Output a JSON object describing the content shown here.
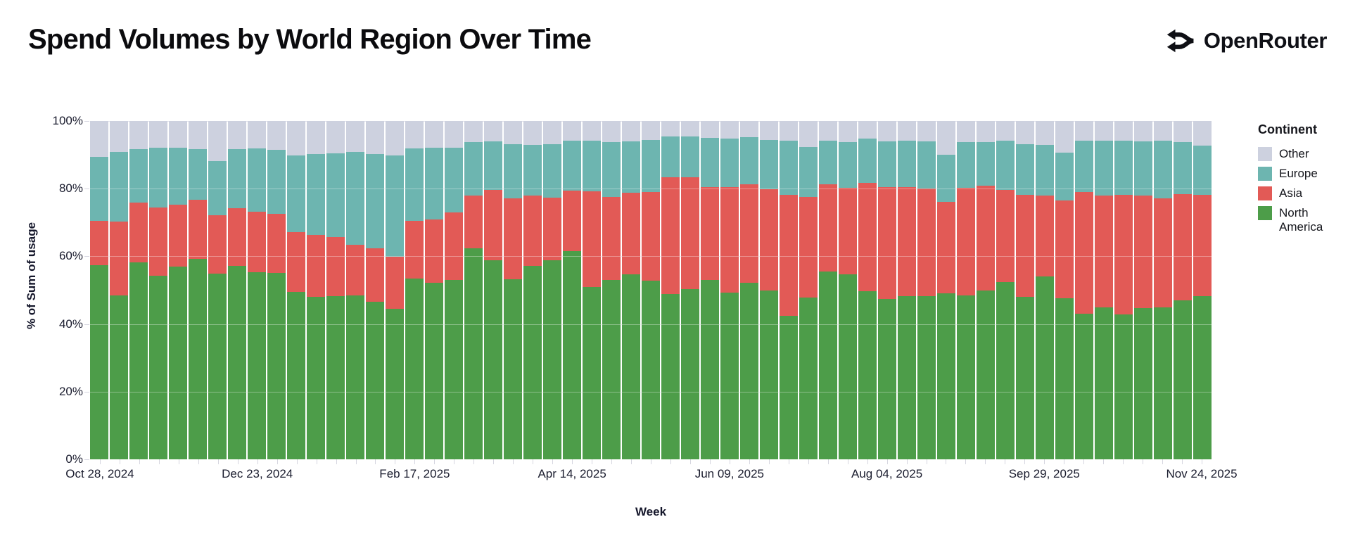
{
  "page": {
    "title": "Spend Volumes by World Region Over Time"
  },
  "brand": {
    "name": "OpenRouter",
    "icon": "openrouter-fork-arrows-icon",
    "color": "#0e0f14"
  },
  "chart_data": {
    "type": "bar",
    "variant": "stacked-100-percent-column",
    "title": "Spend Volumes by World Region Over Time",
    "xlabel": "Week",
    "ylabel": "% of Sum of usage",
    "ylim": [
      0,
      100
    ],
    "grid": true,
    "y_tick_values": [
      0,
      20,
      40,
      60,
      80,
      100
    ],
    "y_tick_labels": [
      "0%",
      "20%",
      "40%",
      "60%",
      "80%",
      "100%"
    ],
    "x_tick_label_indices": [
      0,
      8,
      16,
      24,
      32,
      40,
      48,
      56
    ],
    "x_tick_labels_shown": [
      "Oct 28, 2024",
      "Dec 23, 2024",
      "Feb 17, 2025",
      "Apr 14, 2025",
      "Jun 09, 2025",
      "Aug 04, 2025",
      "Sep 29, 2025",
      "Nov 24, 2025"
    ],
    "legend": {
      "title": "Continent",
      "position": "right",
      "entries": [
        {
          "label": "Other",
          "color": "#cdd1df"
        },
        {
          "label": "Europe",
          "color": "#6db5b0"
        },
        {
          "label": "Asia",
          "color": "#e25a56"
        },
        {
          "label": "North America",
          "color": "#4d9d49"
        }
      ]
    },
    "stack_order_bottom_to_top": [
      "North America",
      "Asia",
      "Europe",
      "Other"
    ],
    "series_colors": {
      "North America": "#4d9d49",
      "Asia": "#e25a56",
      "Europe": "#6db5b0",
      "Other": "#cdd1df"
    },
    "weeks": [
      "Oct 28, 2024",
      "Nov 04, 2024",
      "Nov 11, 2024",
      "Nov 18, 2024",
      "Nov 25, 2024",
      "Dec 02, 2024",
      "Dec 09, 2024",
      "Dec 16, 2024",
      "Dec 23, 2024",
      "Dec 30, 2024",
      "Jan 06, 2025",
      "Jan 13, 2025",
      "Jan 20, 2025",
      "Jan 27, 2025",
      "Feb 03, 2025",
      "Feb 10, 2025",
      "Feb 17, 2025",
      "Feb 24, 2025",
      "Mar 03, 2025",
      "Mar 10, 2025",
      "Mar 17, 2025",
      "Mar 24, 2025",
      "Mar 31, 2025",
      "Apr 07, 2025",
      "Apr 14, 2025",
      "Apr 21, 2025",
      "Apr 28, 2025",
      "May 05, 2025",
      "May 12, 2025",
      "May 19, 2025",
      "May 26, 2025",
      "Jun 02, 2025",
      "Jun 09, 2025",
      "Jun 16, 2025",
      "Jun 23, 2025",
      "Jun 30, 2025",
      "Jul 07, 2025",
      "Jul 14, 2025",
      "Jul 21, 2025",
      "Jul 28, 2025",
      "Aug 04, 2025",
      "Aug 11, 2025",
      "Aug 18, 2025",
      "Aug 25, 2025",
      "Sep 01, 2025",
      "Sep 08, 2025",
      "Sep 15, 2025",
      "Sep 22, 2025",
      "Sep 29, 2025",
      "Oct 06, 2025",
      "Oct 13, 2025",
      "Oct 20, 2025",
      "Oct 27, 2025",
      "Nov 03, 2025",
      "Nov 10, 2025",
      "Nov 17, 2025",
      "Nov 24, 2025"
    ],
    "series": [
      {
        "name": "North America",
        "values": [
          57.4,
          48.4,
          58.3,
          54.3,
          56.9,
          59.2,
          54.8,
          57.1,
          55.2,
          55.0,
          49.5,
          48.0,
          48.2,
          48.5,
          46.5,
          44.5,
          53.5,
          52.2,
          53.1,
          62.3,
          58.8,
          53.2,
          57.2,
          58.8,
          61.5,
          51.0,
          53.1,
          54.6,
          52.9,
          48.9,
          50.3,
          53.1,
          49.3,
          52.2,
          49.9,
          42.5,
          47.9,
          55.5,
          54.6,
          49.7,
          47.4,
          48.2,
          48.3,
          49.0,
          48.4,
          49.9,
          52.4,
          48.1,
          54.1,
          47.6,
          43.0,
          44.9,
          42.8,
          44.6,
          44.9,
          47.0,
          48.2
        ]
      },
      {
        "name": "Asia",
        "values": [
          13.1,
          21.9,
          17.5,
          20.1,
          18.4,
          17.6,
          17.3,
          17.1,
          18.0,
          17.6,
          17.7,
          18.3,
          17.4,
          15.0,
          15.9,
          15.3,
          17.0,
          18.6,
          19.9,
          15.7,
          20.8,
          23.9,
          20.8,
          18.5,
          17.9,
          28.3,
          24.4,
          24.1,
          26.0,
          34.5,
          33.1,
          27.4,
          31.1,
          29.0,
          30.0,
          35.7,
          29.6,
          25.7,
          25.7,
          31.9,
          33.1,
          32.2,
          31.7,
          27.1,
          31.8,
          31.0,
          27.2,
          30.1,
          23.9,
          29.0,
          35.9,
          33.1,
          35.3,
          33.3,
          32.3,
          31.3,
          29.9
        ]
      },
      {
        "name": "Europe",
        "values": [
          19.0,
          20.6,
          15.9,
          17.7,
          16.7,
          14.9,
          16.0,
          17.5,
          18.7,
          18.8,
          22.6,
          23.9,
          24.8,
          27.3,
          27.8,
          30.0,
          21.4,
          21.2,
          19.2,
          15.8,
          14.4,
          16.0,
          14.9,
          15.8,
          14.8,
          14.8,
          16.3,
          15.3,
          15.4,
          12.1,
          12.0,
          14.5,
          14.4,
          14.1,
          14.5,
          15.9,
          14.9,
          12.9,
          13.5,
          13.1,
          13.4,
          13.7,
          13.9,
          13.9,
          13.6,
          12.9,
          14.6,
          14.9,
          14.9,
          14.0,
          15.3,
          16.1,
          16.0,
          16.0,
          16.9,
          15.5,
          14.6
        ]
      },
      {
        "name": "Other",
        "values": [
          10.5,
          9.1,
          8.3,
          7.9,
          8.0,
          8.3,
          11.9,
          8.3,
          8.1,
          8.6,
          10.2,
          9.8,
          9.6,
          9.2,
          9.8,
          10.2,
          8.1,
          8.0,
          7.8,
          6.2,
          6.0,
          6.9,
          7.1,
          6.9,
          5.8,
          5.9,
          6.2,
          6.0,
          5.7,
          4.5,
          4.6,
          5.0,
          5.2,
          4.7,
          5.6,
          5.9,
          7.6,
          5.9,
          6.2,
          5.3,
          6.1,
          5.9,
          6.1,
          10.0,
          6.2,
          6.2,
          5.8,
          6.9,
          7.1,
          9.4,
          5.8,
          5.9,
          5.9,
          6.1,
          5.9,
          6.2,
          7.3
        ]
      }
    ]
  }
}
